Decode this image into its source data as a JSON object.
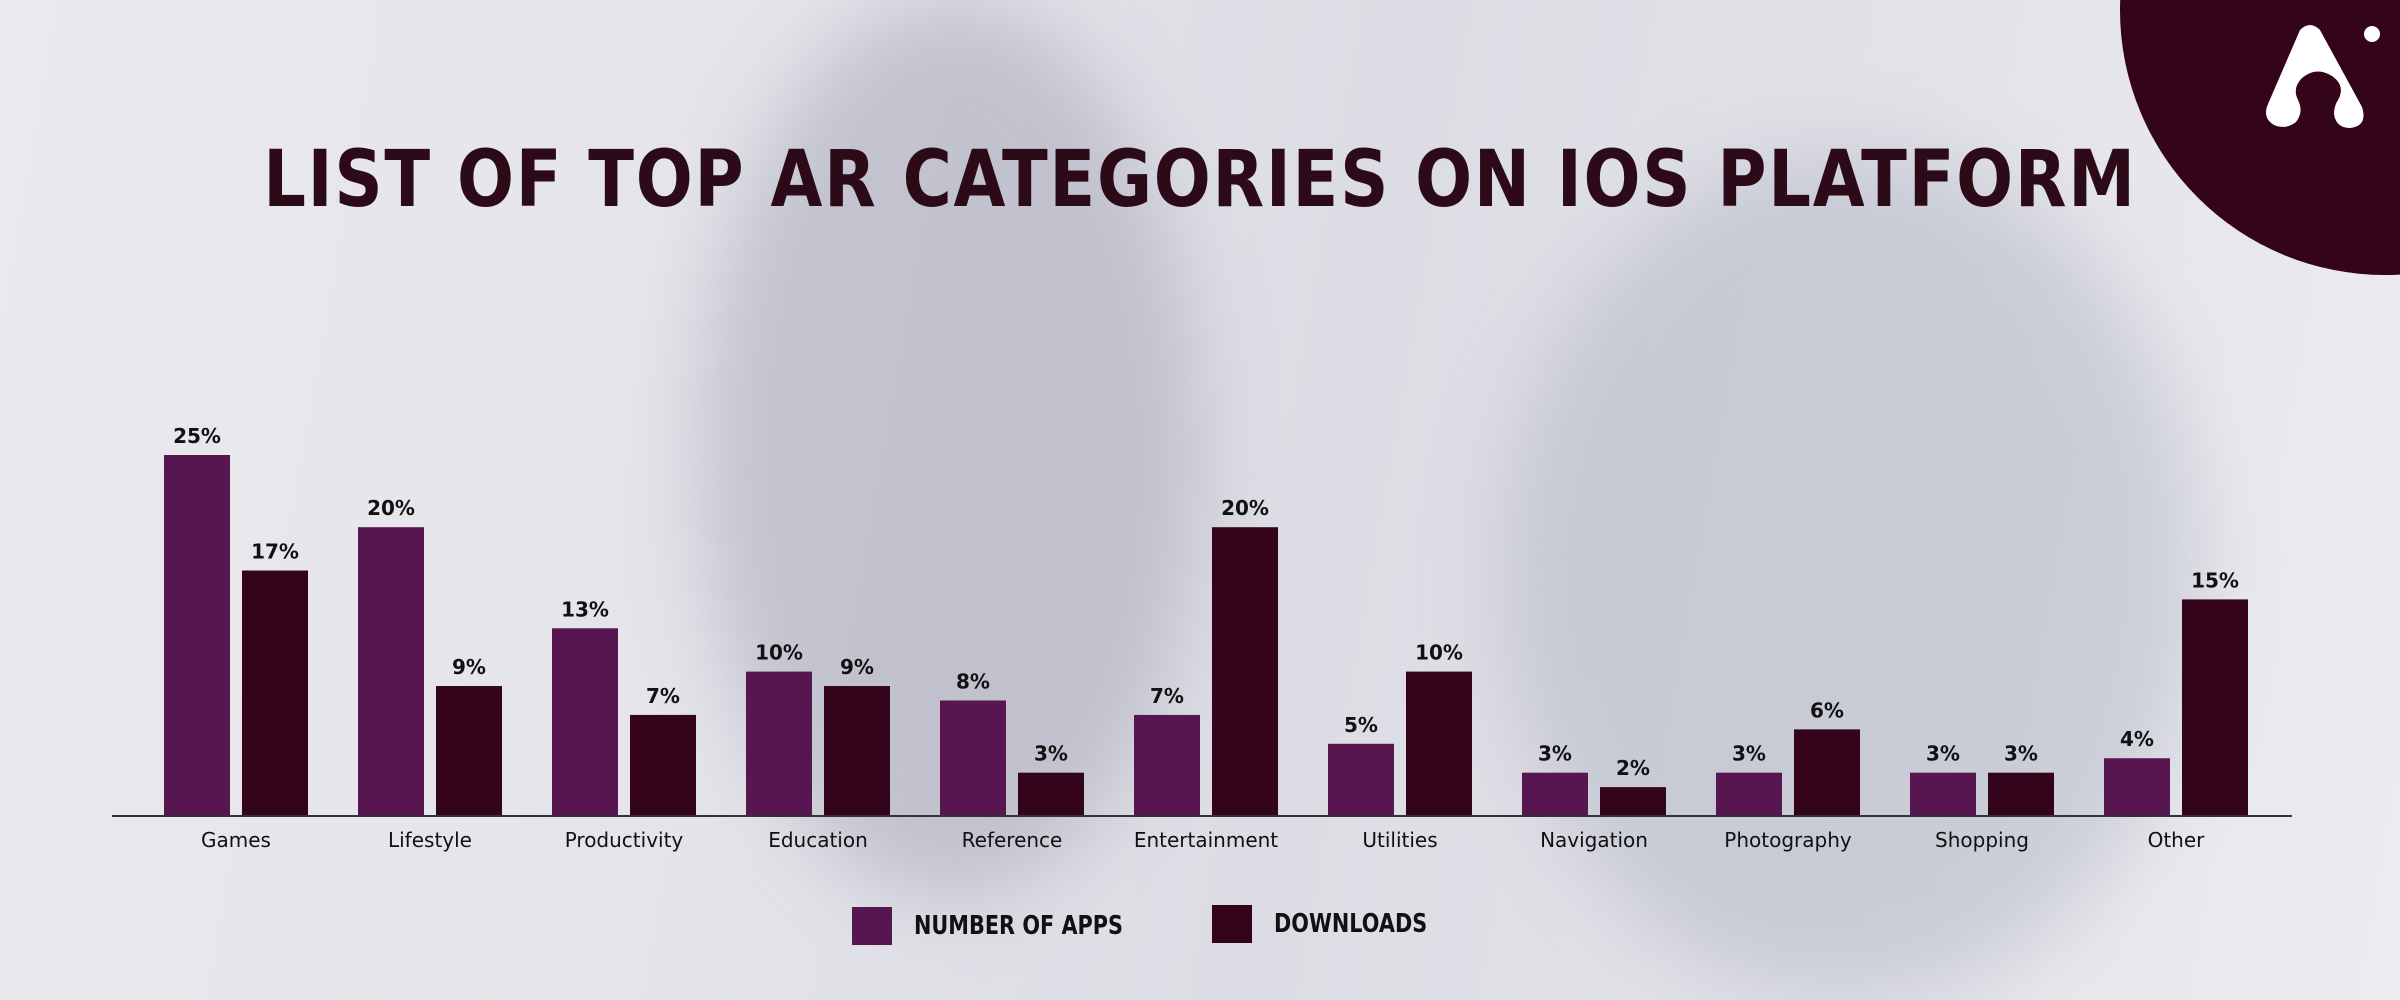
{
  "chart_data": {
    "type": "bar",
    "title": "LIST OF TOP AR CATEGORIES ON IOS PLATFORM",
    "xlabel": "",
    "ylabel": "",
    "ylim": [
      0,
      25
    ],
    "grid": false,
    "legend_position": "bottom-center",
    "categories": [
      "Games",
      "Lifestyle",
      "Productivity",
      "Education",
      "Reference",
      "Entertainment",
      "Utilities",
      "Navigation",
      "Photography",
      "Shopping",
      "Other"
    ],
    "series": [
      {
        "name": "NUMBER OF APPS",
        "color": "#581650",
        "values": [
          25,
          20,
          13,
          10,
          8,
          7,
          5,
          3,
          3,
          3,
          4
        ]
      },
      {
        "name": "DOWNLOADS",
        "color": "#33041a",
        "values": [
          17,
          9,
          7,
          9,
          3,
          20,
          10,
          2,
          6,
          3,
          15
        ]
      }
    ],
    "value_suffix": "%"
  },
  "logo_icon": "brand-a-logo-icon"
}
